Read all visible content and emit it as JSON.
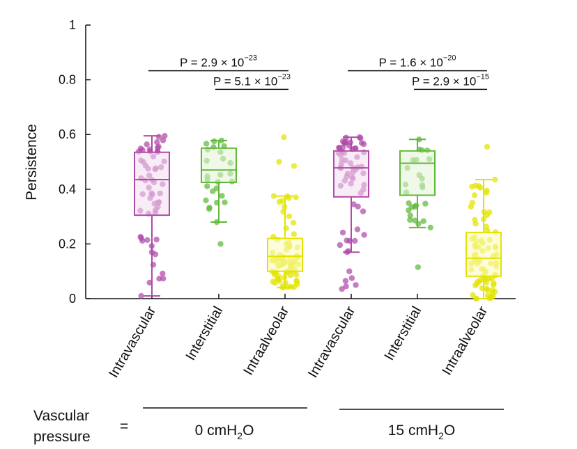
{
  "chart_data": {
    "type": "box",
    "ylabel": "Persistence",
    "ylim": [
      0,
      1
    ],
    "yticks": [
      {
        "value": 0,
        "label": "0"
      },
      {
        "value": 0.2,
        "label": "0.2"
      },
      {
        "value": 0.4,
        "label": "0.4"
      },
      {
        "value": 0.6,
        "label": "0.6"
      },
      {
        "value": 0.8,
        "label": "0.8"
      },
      {
        "value": 1,
        "label": "1"
      }
    ],
    "categories": [
      "Intravascular",
      "Interstitial",
      "Intraalveolar",
      "Intravascular",
      "Interstitial",
      "Intraalveolar"
    ],
    "groups": [
      {
        "label": "Intravascular",
        "condition": "0 cmH2O",
        "color": "#b04aa8",
        "fill": "#f2dcef",
        "min": 0.01,
        "q1": 0.305,
        "median": 0.435,
        "q3": 0.535,
        "max": 0.595,
        "n_points": 55,
        "seed": 11
      },
      {
        "label": "Interstitial",
        "condition": "0 cmH2O",
        "color": "#5fb83a",
        "fill": "#e3f2d6",
        "min": 0.28,
        "q1": 0.425,
        "median": 0.47,
        "q3": 0.55,
        "max": 0.578,
        "n_points": 24,
        "seed": 23,
        "outliers": [
          0.2
        ]
      },
      {
        "label": "Intraalveolar",
        "condition": "0 cmH2O",
        "color": "#e3e300",
        "fill": "#fdfbbd",
        "min": 0.04,
        "q1": 0.1,
        "median": 0.155,
        "q3": 0.22,
        "max": 0.375,
        "n_points": 75,
        "seed": 37,
        "outliers": [
          0.485,
          0.5,
          0.59
        ]
      },
      {
        "label": "Intravascular",
        "condition": "15 cmH2O",
        "color": "#b04aa8",
        "fill": "#f2dcef",
        "min": 0.17,
        "q1": 0.372,
        "median": 0.478,
        "q3": 0.54,
        "max": 0.59,
        "n_points": 55,
        "seed": 41,
        "outliers": [
          0.035,
          0.045,
          0.05,
          0.065,
          0.075,
          0.1
        ]
      },
      {
        "label": "Interstitial",
        "condition": "15 cmH2O",
        "color": "#5fb83a",
        "fill": "#e3f2d6",
        "min": 0.26,
        "q1": 0.378,
        "median": 0.495,
        "q3": 0.54,
        "max": 0.582,
        "n_points": 24,
        "seed": 53,
        "outliers": [
          0.115
        ]
      },
      {
        "label": "Intraalveolar",
        "condition": "15 cmH2O",
        "color": "#e3e300",
        "fill": "#fdfbbd",
        "min": 0.0,
        "q1": 0.082,
        "median": 0.148,
        "q3": 0.242,
        "max": 0.435,
        "n_points": 75,
        "seed": 67,
        "outliers": [
          0.555
        ]
      }
    ],
    "comparisons": [
      {
        "from": 0,
        "to": 2,
        "level": 0.833,
        "text": "P = 2.9 × 10",
        "exponent": "−23"
      },
      {
        "from": 1,
        "to": 2,
        "level": 0.765,
        "text": "P = 5.1 × 10",
        "exponent": "−23"
      },
      {
        "from": 3,
        "to": 5,
        "level": 0.833,
        "text": "P = 1.6 × 10",
        "exponent": "−20"
      },
      {
        "from": 4,
        "to": 5,
        "level": 0.765,
        "text": "P = 2.9 × 10",
        "exponent": "−15"
      }
    ]
  },
  "footer": {
    "label_line1": "Vascular",
    "label_line2": "pressure",
    "equals": "=",
    "condition1_prefix": "0 cmH",
    "condition1_sub": "2",
    "condition1_suffix": "O",
    "condition2_prefix": "15 cmH",
    "condition2_sub": "2",
    "condition2_suffix": "O"
  }
}
